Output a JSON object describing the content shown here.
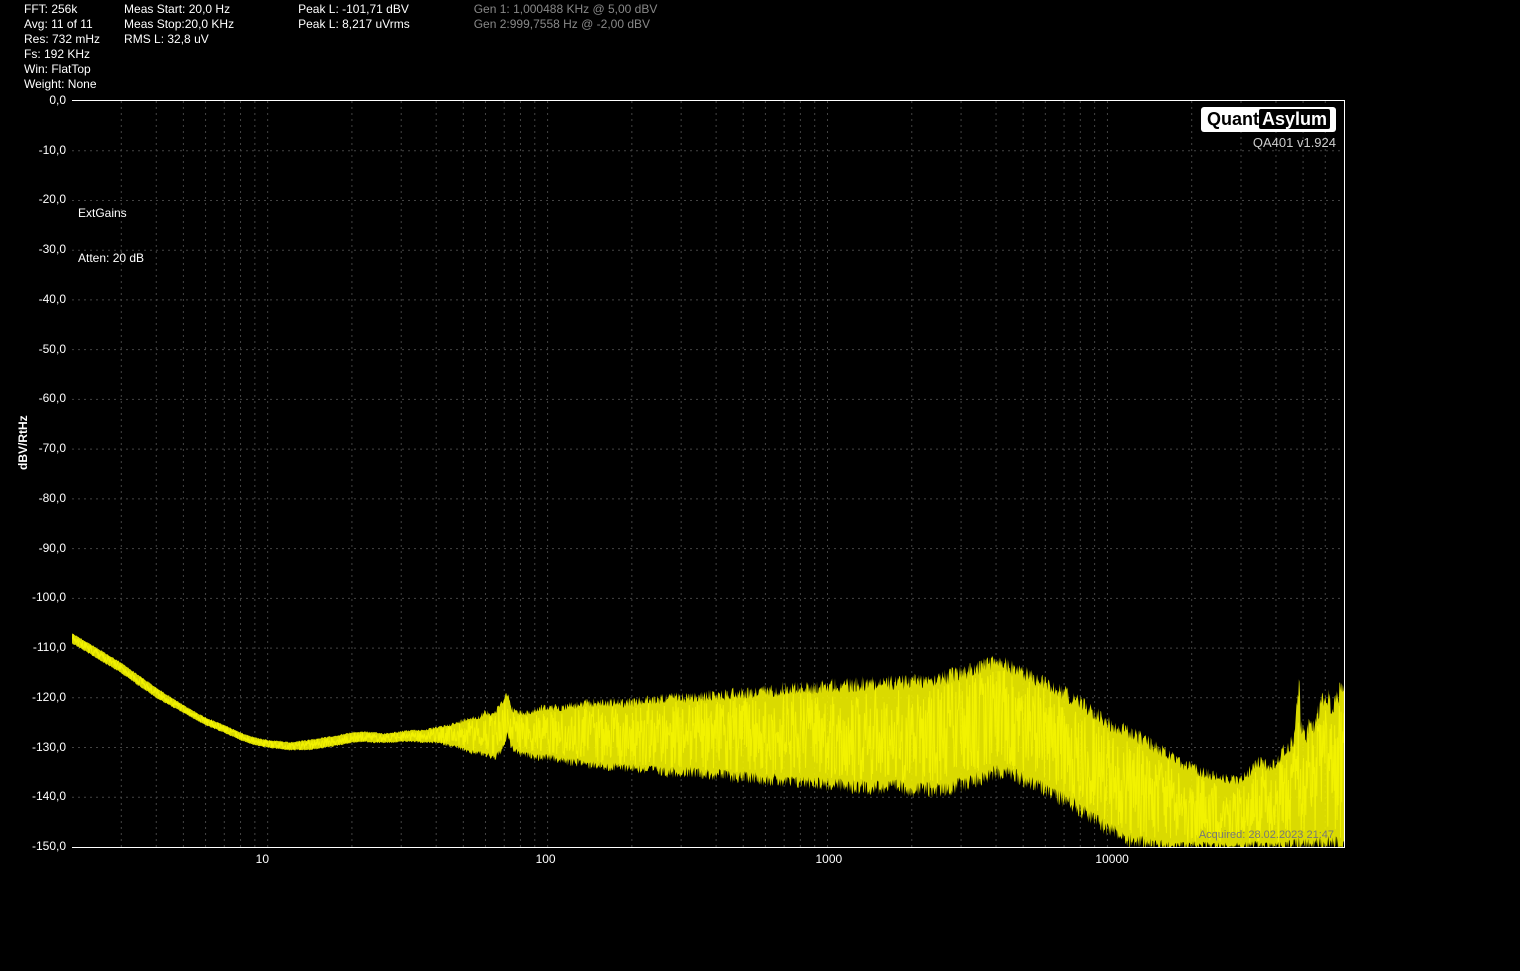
{
  "header": {
    "col1": {
      "fft": "FFT: 256k",
      "avg": "Avg: 11 of 11",
      "res": "Res: 732 mHz",
      "fs": "Fs: 192 KHz",
      "win": "Win: FlatTop",
      "weight": "Weight: None"
    },
    "col2": {
      "meas_start": "Meas Start: 20,0 Hz",
      "meas_stop": "Meas Stop:20,0 KHz",
      "rms_l": "RMS L: 32,8 uV"
    },
    "col3": {
      "peak_l_dbv": "Peak L: -101,71 dBV",
      "blank": "",
      "peak_l_uvrms": "Peak L: 8,217 uVrms"
    },
    "col4": {
      "gen1": "Gen 1: 1,000488 KHz @ 5,00  dBV",
      "gen2": "Gen 2:999,7558 Hz @ -2,00  dBV"
    }
  },
  "logo": {
    "brand1": "Quant",
    "brand2": "Asylum",
    "sub": "QA401 v1.924"
  },
  "plot": {
    "ylabel": "dBV/RtHz",
    "annot_extgains": "ExtGains",
    "annot_atten": "Atten: 20 dB",
    "acquired": "Acquired: 28.02.2023  21:47",
    "y_ticks": [
      "0,0",
      "-10,0",
      "-20,0",
      "-30,0",
      "-40,0",
      "-50,0",
      "-60,0",
      "-70,0",
      "-80,0",
      "-90,0",
      "-100,0",
      "-110,0",
      "-120,0",
      "-130,0",
      "-140,0",
      "-150,0"
    ],
    "y_values": [
      0,
      -10,
      -20,
      -30,
      -40,
      -50,
      -60,
      -70,
      -80,
      -90,
      -100,
      -110,
      -120,
      -130,
      -140,
      -150
    ],
    "x_major_ticks": [
      10,
      100,
      1000,
      10000
    ],
    "x_major_labels": [
      "10",
      "100",
      "1000",
      "10000"
    ],
    "x_range_hz": [
      2,
      70000
    ],
    "y_range_db": [
      -150,
      0
    ],
    "trace_color": "#f2f200",
    "grid_color": "#444444",
    "background_color": "#000000",
    "text_color": "#ffffff",
    "dim_text_color": "#888888",
    "envelope": [
      [
        2,
        -107,
        -109
      ],
      [
        3,
        -113,
        -115
      ],
      [
        4,
        -118,
        -120
      ],
      [
        5,
        -121.5,
        -123
      ],
      [
        6,
        -124,
        -125.5
      ],
      [
        7,
        -125.5,
        -127
      ],
      [
        8,
        -127,
        -128.5
      ],
      [
        9,
        -128,
        -129.5
      ],
      [
        10,
        -128.5,
        -130
      ],
      [
        12,
        -129,
        -130.5
      ],
      [
        14,
        -128.5,
        -130.5
      ],
      [
        16,
        -128,
        -130
      ],
      [
        18,
        -127.5,
        -129.5
      ],
      [
        20,
        -127,
        -129
      ],
      [
        22,
        -126.8,
        -128.8
      ],
      [
        24,
        -127,
        -129
      ],
      [
        26,
        -127.2,
        -129
      ],
      [
        28,
        -127,
        -129
      ],
      [
        30,
        -126.8,
        -128.8
      ],
      [
        33,
        -126.5,
        -128.8
      ],
      [
        36,
        -126.5,
        -129
      ],
      [
        40,
        -126,
        -129
      ],
      [
        44,
        -125.5,
        -129.5
      ],
      [
        48,
        -125,
        -130
      ],
      [
        52,
        -124,
        -131
      ],
      [
        56,
        -124,
        -131
      ],
      [
        60,
        -123,
        -131.5
      ],
      [
        65,
        -123,
        -132
      ],
      [
        70,
        -120,
        -130
      ],
      [
        72,
        -119,
        -127
      ],
      [
        74,
        -122,
        -130
      ],
      [
        78,
        -123,
        -131
      ],
      [
        82,
        -123,
        -131.5
      ],
      [
        86,
        -123,
        -131.5
      ],
      [
        90,
        -122.5,
        -132
      ],
      [
        95,
        -122,
        -132
      ],
      [
        100,
        -122,
        -132
      ],
      [
        110,
        -122,
        -132.5
      ],
      [
        120,
        -121.5,
        -133
      ],
      [
        130,
        -121.5,
        -133
      ],
      [
        140,
        -121,
        -133.5
      ],
      [
        150,
        -121,
        -133.5
      ],
      [
        160,
        -121,
        -134
      ],
      [
        180,
        -121,
        -134
      ],
      [
        200,
        -121,
        -134
      ],
      [
        220,
        -120.5,
        -134.5
      ],
      [
        240,
        -120.5,
        -134.5
      ],
      [
        260,
        -120,
        -135
      ],
      [
        300,
        -120,
        -135
      ],
      [
        340,
        -120,
        -135
      ],
      [
        380,
        -119.5,
        -135.5
      ],
      [
        420,
        -119.5,
        -135.5
      ],
      [
        460,
        -119,
        -136
      ],
      [
        500,
        -119,
        -136
      ],
      [
        550,
        -119,
        -136
      ],
      [
        600,
        -118.5,
        -136.5
      ],
      [
        650,
        -118.5,
        -136.5
      ],
      [
        700,
        -118,
        -137
      ],
      [
        800,
        -118,
        -137
      ],
      [
        900,
        -118,
        -137
      ],
      [
        1000,
        -117.5,
        -137.5
      ],
      [
        1100,
        -117.5,
        -137.5
      ],
      [
        1200,
        -117.5,
        -138
      ],
      [
        1400,
        -117,
        -138
      ],
      [
        1600,
        -117,
        -138
      ],
      [
        1800,
        -117,
        -138
      ],
      [
        2000,
        -116.5,
        -138.5
      ],
      [
        2200,
        -116.5,
        -138.5
      ],
      [
        2400,
        -116,
        -138.5
      ],
      [
        2600,
        -116,
        -138.5
      ],
      [
        2800,
        -115.5,
        -138
      ],
      [
        3000,
        -115,
        -137.5
      ],
      [
        3200,
        -114.5,
        -137
      ],
      [
        3400,
        -114,
        -136.5
      ],
      [
        3600,
        -113.5,
        -136
      ],
      [
        3800,
        -113,
        -135.5
      ],
      [
        4000,
        -113,
        -135
      ],
      [
        4200,
        -113,
        -135
      ],
      [
        4400,
        -113.5,
        -135
      ],
      [
        4600,
        -114,
        -135.5
      ],
      [
        4800,
        -114.5,
        -136
      ],
      [
        5000,
        -115,
        -136.5
      ],
      [
        5500,
        -116,
        -137.5
      ],
      [
        6000,
        -117,
        -138.5
      ],
      [
        6500,
        -118,
        -139.5
      ],
      [
        7000,
        -119,
        -140.5
      ],
      [
        7500,
        -120,
        -141.5
      ],
      [
        8000,
        -121,
        -142.5
      ],
      [
        8500,
        -122,
        -143.5
      ],
      [
        9000,
        -123,
        -144.5
      ],
      [
        9500,
        -124,
        -145.5
      ],
      [
        10000,
        -125,
        -146.5
      ],
      [
        11000,
        -126,
        -147.5
      ],
      [
        12000,
        -127,
        -148.5
      ],
      [
        13000,
        -128,
        -149
      ],
      [
        14000,
        -129,
        -149.5
      ],
      [
        15000,
        -130,
        -150
      ],
      [
        16000,
        -131,
        -150
      ],
      [
        17000,
        -132,
        -150
      ],
      [
        18000,
        -133,
        -150
      ],
      [
        20000,
        -134,
        -150
      ],
      [
        22000,
        -135,
        -150
      ],
      [
        25000,
        -136,
        -150
      ],
      [
        28000,
        -136.5,
        -150
      ],
      [
        30000,
        -136.5,
        -150
      ],
      [
        32000,
        -135,
        -150
      ],
      [
        34000,
        -133,
        -150
      ],
      [
        36000,
        -133,
        -150
      ],
      [
        38000,
        -134,
        -150
      ],
      [
        40000,
        -133,
        -150
      ],
      [
        42000,
        -131,
        -150
      ],
      [
        44000,
        -130,
        -150
      ],
      [
        46000,
        -129,
        -150
      ],
      [
        48000,
        -119,
        -150
      ],
      [
        48500,
        -117,
        -150
      ],
      [
        49000,
        -125,
        -150
      ],
      [
        51000,
        -128,
        -150
      ],
      [
        53000,
        -125,
        -150
      ],
      [
        55000,
        -126,
        -150
      ],
      [
        58000,
        -121,
        -150
      ],
      [
        61000,
        -120,
        -150
      ],
      [
        64000,
        -122,
        -150
      ],
      [
        67000,
        -119,
        -150
      ],
      [
        70000,
        -119,
        -150
      ]
    ]
  }
}
